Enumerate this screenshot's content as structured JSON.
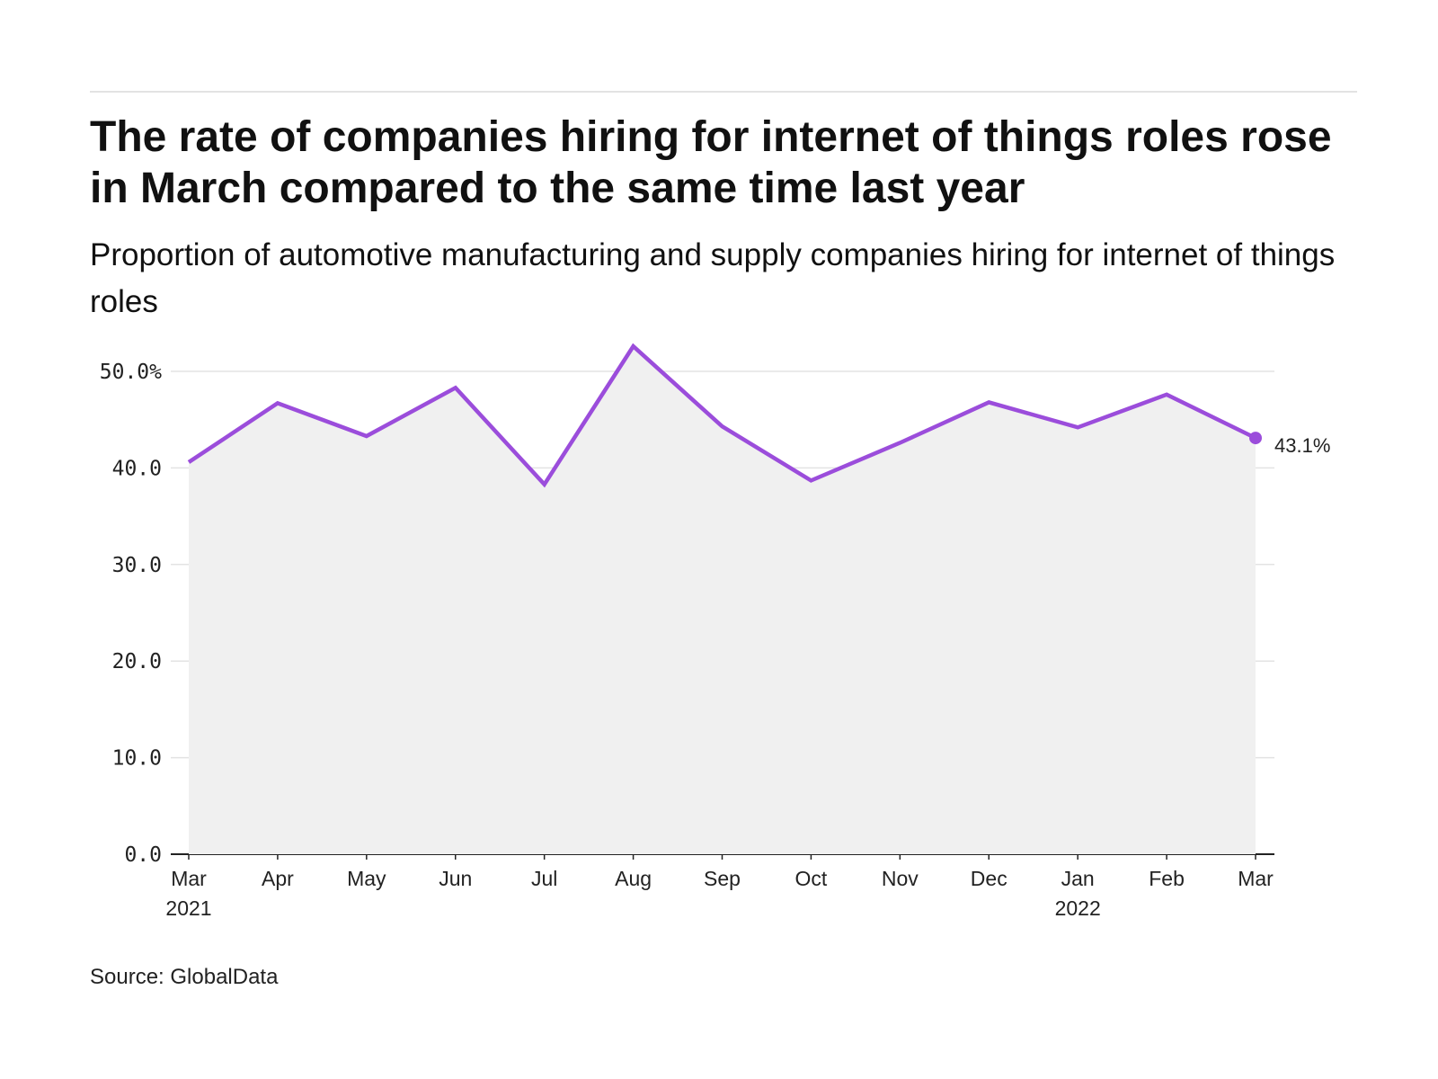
{
  "title": "The rate of companies hiring for internet of things roles rose in March compared to the same time last year",
  "subtitle": "Proportion of automotive manufacturing and supply companies hiring for internet of things roles",
  "source": "Source: GlobalData",
  "colors": {
    "line": "#9b4ddb",
    "area": "#f0f0f0",
    "grid": "#e3e3e3"
  },
  "chart_data": {
    "type": "line",
    "x": [
      "Mar 2021",
      "Apr 2021",
      "May 2021",
      "Jun 2021",
      "Jul 2021",
      "Aug 2021",
      "Sep 2021",
      "Oct 2021",
      "Nov 2021",
      "Dec 2021",
      "Jan 2022",
      "Feb 2022",
      "Mar 2022"
    ],
    "x_tick_labels": [
      {
        "month": "Mar",
        "year": "2021"
      },
      {
        "month": "Apr",
        "year": ""
      },
      {
        "month": "May",
        "year": ""
      },
      {
        "month": "Jun",
        "year": ""
      },
      {
        "month": "Jul",
        "year": ""
      },
      {
        "month": "Aug",
        "year": ""
      },
      {
        "month": "Sep",
        "year": ""
      },
      {
        "month": "Oct",
        "year": ""
      },
      {
        "month": "Nov",
        "year": ""
      },
      {
        "month": "Dec",
        "year": ""
      },
      {
        "month": "Jan",
        "year": "2022"
      },
      {
        "month": "Feb",
        "year": ""
      },
      {
        "month": "Mar",
        "year": ""
      }
    ],
    "series": [
      {
        "values": [
          40.6,
          46.7,
          43.3,
          48.3,
          38.3,
          52.6,
          44.3,
          38.7,
          42.6,
          46.8,
          44.2,
          47.6,
          43.1
        ]
      }
    ],
    "y_ticks": [
      0,
      10,
      20,
      30,
      40,
      50
    ],
    "y_tick_labels": [
      "0.0",
      "10.0",
      "20.0",
      "30.0",
      "40.0",
      "50.0%"
    ],
    "ylim": [
      0,
      50
    ],
    "end_label": "43.1%",
    "grid": true,
    "area_fill": true,
    "xlabel": "",
    "ylabel": ""
  }
}
